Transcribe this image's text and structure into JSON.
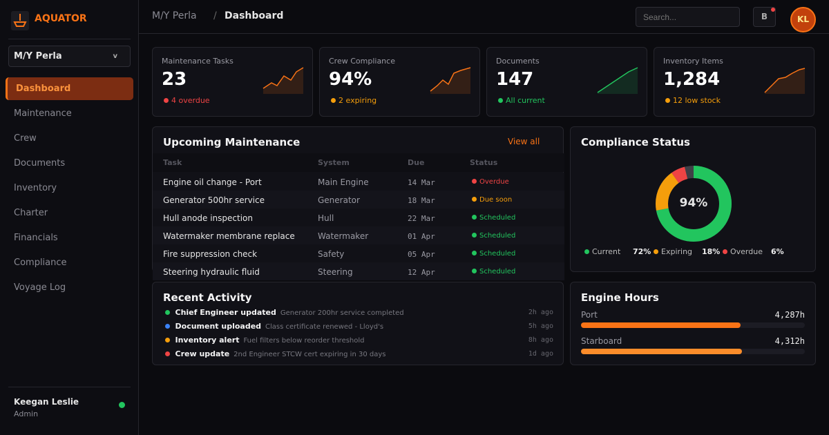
{
  "brand": "AQUATOR",
  "vessel_select": {
    "label": "M/Y Perla",
    "caret": "v"
  },
  "nav": [
    "Dashboard",
    "Maintenance",
    "Crew",
    "Documents",
    "Inventory",
    "Charter",
    "Financials",
    "Compliance",
    "Voyage Log"
  ],
  "user": {
    "name": "Keegan Leslie",
    "role": "Admin"
  },
  "header": {
    "breadcrumb": [
      "M/Y Perla",
      "/",
      "Dashboard"
    ],
    "search_placeholder": "Search...",
    "button": "B",
    "avatar": "KL"
  },
  "stats": [
    {
      "label": "Maintenance Tasks",
      "value": "23",
      "note": "4 overdue",
      "color": "#ef4444"
    },
    {
      "label": "Crew Compliance",
      "value": "94%",
      "note": "2 expiring",
      "color": "#f59e0b"
    },
    {
      "label": "Documents",
      "value": "147",
      "note": "All current",
      "color": "#22c55e"
    },
    {
      "label": "Inventory Items",
      "value": "1,284",
      "note": "12 low stock",
      "color": "#f59e0b"
    }
  ],
  "maintenance": {
    "title": "Upcoming Maintenance",
    "link": "View all",
    "columns": [
      "Task",
      "System",
      "Due",
      "Status"
    ],
    "rows": [
      {
        "task": "Engine oil change - Port",
        "system": "Main Engine",
        "due": "14 Mar",
        "status": "Overdue",
        "color": "#ef4444"
      },
      {
        "task": "Generator 500hr service",
        "system": "Generator",
        "due": "18 Mar",
        "status": "Due soon",
        "color": "#f59e0b"
      },
      {
        "task": "Hull anode inspection",
        "system": "Hull",
        "due": "22 Mar",
        "status": "Scheduled",
        "color": "#22c55e"
      },
      {
        "task": "Watermaker membrane replace",
        "system": "Watermaker",
        "due": "01 Apr",
        "status": "Scheduled",
        "color": "#22c55e"
      },
      {
        "task": "Fire suppression check",
        "system": "Safety",
        "due": "05 Apr",
        "status": "Scheduled",
        "color": "#22c55e"
      },
      {
        "task": "Steering hydraulic fluid",
        "system": "Steering",
        "due": "12 Apr",
        "status": "Scheduled",
        "color": "#22c55e"
      }
    ]
  },
  "compliance": {
    "title": "Compliance Status",
    "center": "94%",
    "segments": [
      {
        "name": "Current",
        "value": 72,
        "label": "72%",
        "color": "#22c55e"
      },
      {
        "name": "Expiring",
        "value": 18,
        "label": "18%",
        "color": "#f59e0b"
      },
      {
        "name": "Overdue",
        "value": 6,
        "label": "6%",
        "color": "#ef4444"
      }
    ]
  },
  "activity": {
    "title": "Recent Activity",
    "items": [
      {
        "actor": "Chief Engineer updated",
        "text": "Generator 200hr service completed",
        "time": "2h ago",
        "color": "#22c55e"
      },
      {
        "actor": "Document uploaded",
        "text": "Class certificate renewed - Lloyd's",
        "time": "5h ago",
        "color": "#3b82f6"
      },
      {
        "actor": "Inventory alert",
        "text": "Fuel filters below reorder threshold",
        "time": "8h ago",
        "color": "#f59e0b"
      },
      {
        "actor": "Crew update",
        "text": "2nd Engineer STCW cert expiring in 30 days",
        "time": "1d ago",
        "color": "#ef4444"
      }
    ]
  },
  "engine_hours": {
    "title": "Engine Hours",
    "xlim": [
      0,
      6000
    ],
    "bars": [
      {
        "name": "Port",
        "value": 4287,
        "label": "4,287h",
        "color": "#f97316"
      },
      {
        "name": "Starboard",
        "value": 4312,
        "label": "4,312h",
        "color": "#fb8c2a"
      }
    ]
  }
}
